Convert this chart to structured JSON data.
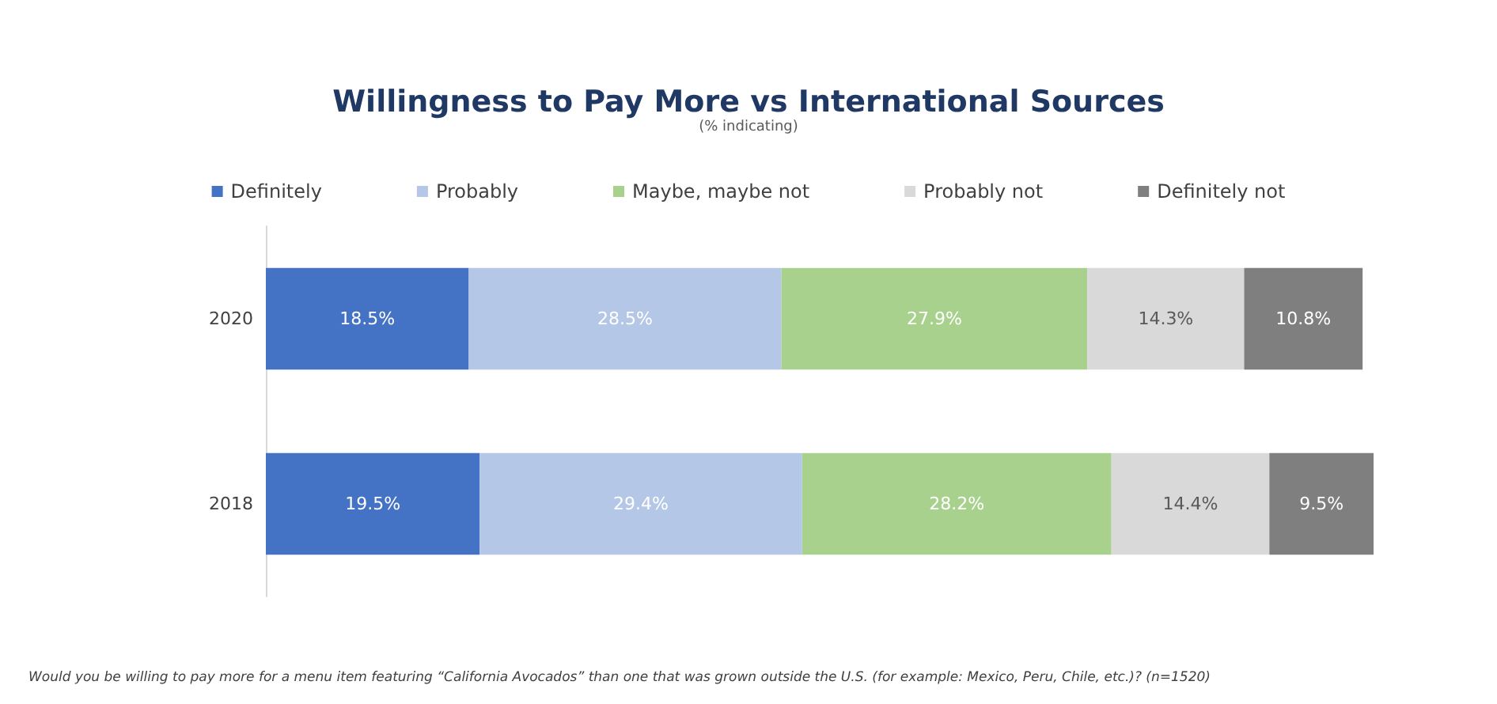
{
  "chart_data": {
    "type": "bar",
    "orientation": "horizontal",
    "stacked": true,
    "title": "Willingness to Pay More vs International Sources",
    "subtitle": "(% indicating)",
    "categories": [
      "2020",
      "2018"
    ],
    "legend": "top",
    "annotations": [
      "Would you be willing to pay more for a menu item featuring “California Avocados” than one that was grown outside the U.S. (for example: Mexico, Peru, Chile, etc.)? (n=1520)"
    ],
    "series": [
      {
        "name": "Definitely",
        "color": "#4472c4",
        "values": [
          18.5,
          19.5
        ],
        "value_labels": [
          "18.5%",
          "19.5%"
        ]
      },
      {
        "name": "Probably",
        "color": "#b4c7e7",
        "values": [
          28.5,
          29.4
        ],
        "value_labels": [
          "28.5%",
          "29.4%"
        ]
      },
      {
        "name": "Maybe, maybe not",
        "color": "#a9d18e",
        "values": [
          27.9,
          28.2
        ],
        "value_labels": [
          "27.9%",
          "28.2%"
        ]
      },
      {
        "name": "Probably not",
        "color": "#d9d9d9",
        "values": [
          14.3,
          14.4
        ],
        "value_labels": [
          "14.3%",
          "14.4%"
        ]
      },
      {
        "name": "Definitely not",
        "color": "#7f7f7f",
        "values": [
          10.8,
          9.5
        ],
        "value_labels": [
          "10.8%",
          "9.5%"
        ]
      }
    ]
  }
}
